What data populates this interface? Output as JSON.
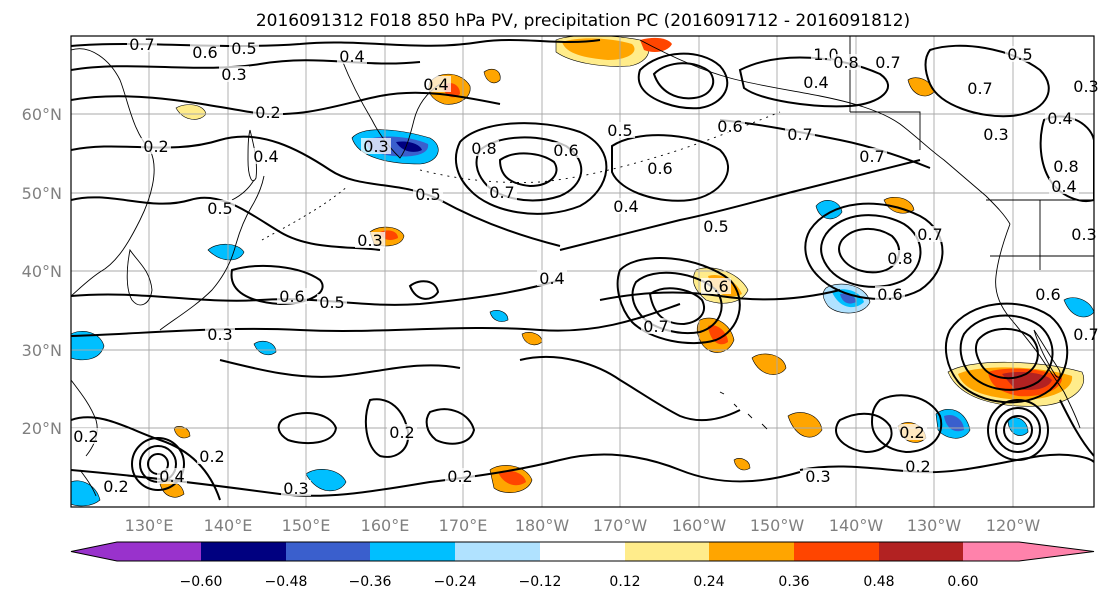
{
  "title": "2016091312 F018 850 hPa PV, precipitation PC (2016091712 - 2016091812)",
  "axes": {
    "lat_labels": [
      "60°N",
      "50°N",
      "40°N",
      "30°N",
      "20°N"
    ],
    "lon_labels": [
      "130°E",
      "140°E",
      "150°E",
      "160°E",
      "170°E",
      "180°W",
      "170°W",
      "160°W",
      "150°W",
      "140°W",
      "130°W",
      "120°W"
    ]
  },
  "colorbar": {
    "tick_labels": [
      "−0.60",
      "−0.48",
      "−0.36",
      "−0.24",
      "−0.12",
      "0.12",
      "0.24",
      "0.36",
      "0.48",
      "0.60"
    ],
    "colors": [
      "#9932cc",
      "#000080",
      "#3a5fcd",
      "#00bfff",
      "#b0e2ff",
      "#ffffff",
      "#ffec8b",
      "#ffa500",
      "#ff4500",
      "#b22222",
      "#ff82ab"
    ]
  },
  "contour_labels": [
    {
      "text": "0.7"
    },
    {
      "text": "0.6"
    },
    {
      "text": "0.5"
    },
    {
      "text": "0.3"
    },
    {
      "text": "0.4"
    },
    {
      "text": "0.2"
    },
    {
      "text": "0.4"
    },
    {
      "text": "0.3"
    },
    {
      "text": "0.2"
    },
    {
      "text": "0.4"
    },
    {
      "text": "0.5"
    },
    {
      "text": "0.3"
    },
    {
      "text": "0.5"
    },
    {
      "text": "0.6"
    },
    {
      "text": "0.8"
    },
    {
      "text": "0.7"
    },
    {
      "text": "0.6"
    },
    {
      "text": "0.5"
    },
    {
      "text": "0.4"
    },
    {
      "text": "0.7"
    },
    {
      "text": "1.0"
    },
    {
      "text": "0.8"
    },
    {
      "text": "0.7"
    },
    {
      "text": "0.4"
    },
    {
      "text": "0.6"
    },
    {
      "text": "0.7"
    },
    {
      "text": "0.7"
    },
    {
      "text": "0.3"
    },
    {
      "text": "0.7"
    },
    {
      "text": "0.5"
    },
    {
      "text": "0.4"
    },
    {
      "text": "0.6"
    },
    {
      "text": "0.5"
    },
    {
      "text": "0.4"
    },
    {
      "text": "0.7"
    },
    {
      "text": "0.6"
    },
    {
      "text": "0.5"
    },
    {
      "text": "0.6"
    },
    {
      "text": "0.8"
    },
    {
      "text": "0.6"
    },
    {
      "text": "0.7"
    },
    {
      "text": "0.3"
    },
    {
      "text": "0.2"
    },
    {
      "text": "0.2"
    },
    {
      "text": "0.4"
    },
    {
      "text": "0.2"
    },
    {
      "text": "0.3"
    },
    {
      "text": "0.2"
    },
    {
      "text": "0.2"
    },
    {
      "text": "0.3"
    },
    {
      "text": "0.2"
    },
    {
      "text": "0.2"
    },
    {
      "text": "0.3"
    },
    {
      "text": "0.8"
    },
    {
      "text": "0.4"
    },
    {
      "text": "0.3"
    }
  ],
  "shading_legend": {
    "positive": [
      "#ffec8b",
      "#ffa500",
      "#ff4500",
      "#b22222"
    ],
    "negative": [
      "#b0e2ff",
      "#00bfff",
      "#3a5fcd",
      "#000080"
    ]
  }
}
